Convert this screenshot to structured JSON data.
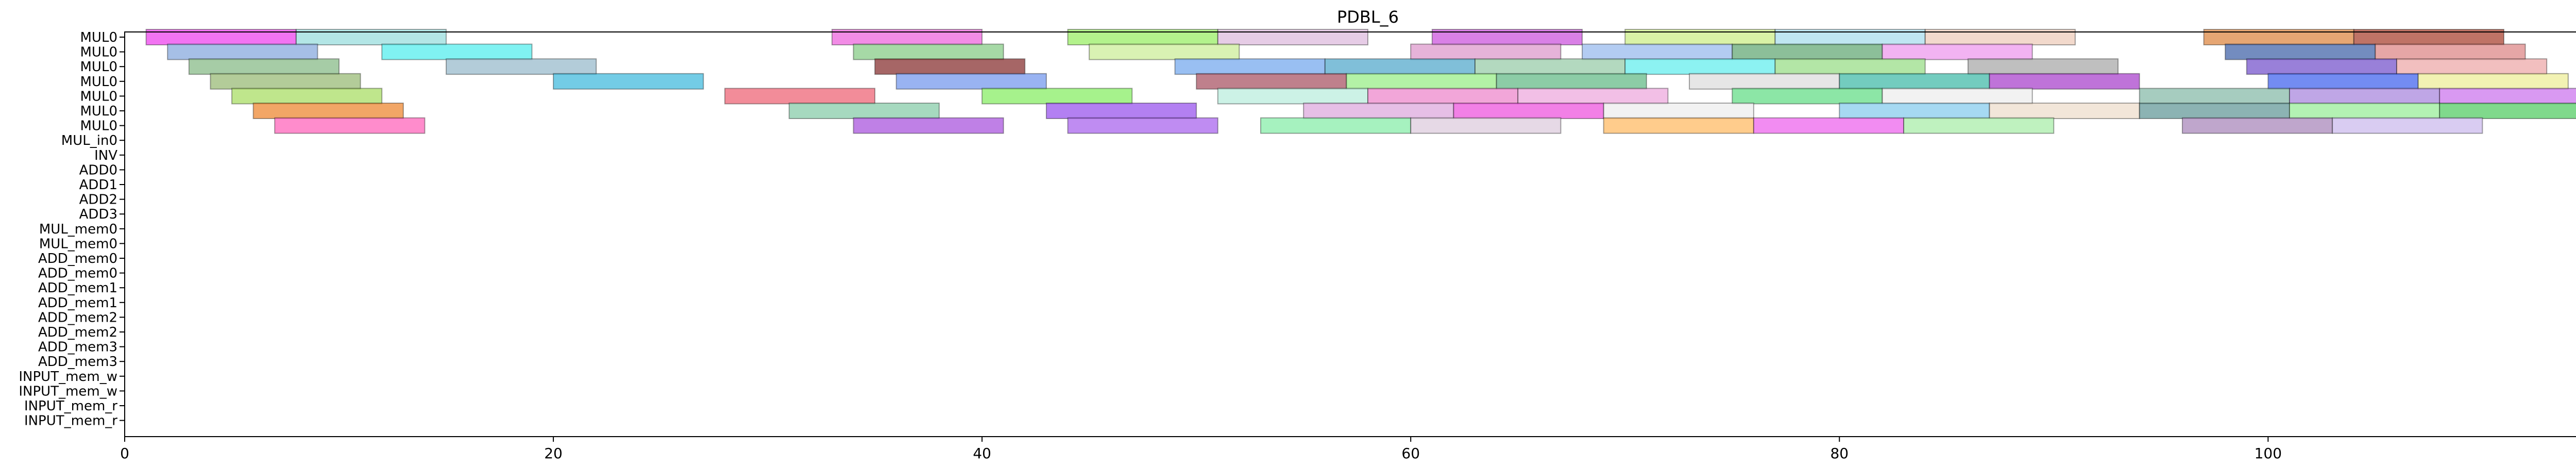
{
  "chart_data": {
    "type": "gantt",
    "title": "PDBL_6",
    "xlabel": "",
    "ylabel": "",
    "xlim": [
      0,
      116
    ],
    "x_ticks": [
      0,
      20,
      40,
      60,
      80,
      100
    ],
    "grid": false,
    "legend": "none",
    "rows": [
      {
        "label": "MUL0",
        "bars": [
          [
            1,
            8,
            "#ee44ee"
          ],
          [
            8,
            15,
            "#99dddd"
          ],
          [
            33,
            40,
            "#ee66dd"
          ],
          [
            44,
            51,
            "#99ee66"
          ],
          [
            51,
            58,
            "#ddbbdd"
          ],
          [
            61,
            68,
            "#cc55dd"
          ],
          [
            70,
            77,
            "#ccee88"
          ],
          [
            77,
            84,
            "#aaddee"
          ],
          [
            84,
            91,
            "#eeccbb"
          ],
          [
            97,
            104,
            "#dd8844"
          ],
          [
            104,
            111,
            "#aa4433"
          ]
        ]
      },
      {
        "label": "MUL0",
        "bars": [
          [
            2,
            9,
            "#88aadd"
          ],
          [
            12,
            19,
            "#55eeee"
          ],
          [
            34,
            41,
            "#88cc88"
          ],
          [
            45,
            52,
            "#ccee99"
          ],
          [
            60,
            67,
            "#dd99cc"
          ],
          [
            68,
            75,
            "#99bbee"
          ],
          [
            75,
            82,
            "#66aa77"
          ],
          [
            82,
            89,
            "#ee99ee"
          ],
          [
            98,
            105,
            "#4466aa"
          ],
          [
            105,
            112,
            "#dd8888"
          ]
        ]
      },
      {
        "label": "MUL0",
        "bars": [
          [
            3,
            10,
            "#88bb88"
          ],
          [
            15,
            22,
            "#99bbcc"
          ],
          [
            35,
            42,
            "#883333"
          ],
          [
            49,
            56,
            "#77aaee"
          ],
          [
            56,
            63,
            "#55aacc"
          ],
          [
            63,
            70,
            "#99ccaa"
          ],
          [
            70,
            77,
            "#66eeee"
          ],
          [
            77,
            84,
            "#99dd88"
          ],
          [
            86,
            93,
            "#aaaaaa"
          ],
          [
            99,
            106,
            "#7755cc"
          ],
          [
            106,
            113,
            "#eeaaaa"
          ]
        ]
      },
      {
        "label": "MUL0",
        "bars": [
          [
            4,
            11,
            "#99bb77"
          ],
          [
            20,
            27,
            "#44bbdd"
          ],
          [
            36,
            43,
            "#7799ee"
          ],
          [
            50,
            57,
            "#aa5566"
          ],
          [
            57,
            64,
            "#99ee88"
          ],
          [
            64,
            71,
            "#66bb88"
          ],
          [
            73,
            80,
            "#dddddd"
          ],
          [
            80,
            87,
            "#44bbaa"
          ],
          [
            87,
            94,
            "#aa44cc"
          ],
          [
            100,
            107,
            "#4466ee"
          ],
          [
            107,
            114,
            "#eeee99"
          ]
        ]
      },
      {
        "label": "MUL0",
        "bars": [
          [
            5,
            12,
            "#aadd66"
          ],
          [
            28,
            35,
            "#ee6677"
          ],
          [
            40,
            47,
            "#88ee66"
          ],
          [
            51,
            58,
            "#bbeedd"
          ],
          [
            58,
            65,
            "#ee88cc"
          ],
          [
            65,
            72,
            "#eeaadd"
          ],
          [
            75,
            82,
            "#66dd88"
          ],
          [
            82,
            89,
            "#eeeeee"
          ],
          [
            94,
            101,
            "#88bbaa"
          ],
          [
            101,
            108,
            "#aa88dd"
          ],
          [
            108,
            115,
            "#cc77ee"
          ]
        ]
      },
      {
        "label": "MUL0",
        "bars": [
          [
            6,
            13,
            "#ee8833"
          ],
          [
            31,
            38,
            "#88ccaa"
          ],
          [
            43,
            50,
            "#9955ee"
          ],
          [
            55,
            62,
            "#ddaadd"
          ],
          [
            62,
            69,
            "#ee55dd"
          ],
          [
            69,
            76,
            "#eeeeee"
          ],
          [
            80,
            87,
            "#88ccee"
          ],
          [
            87,
            94,
            "#eeddcc"
          ],
          [
            94,
            101,
            "#669999"
          ],
          [
            101,
            108,
            "#99ee99"
          ],
          [
            108,
            115,
            "#55cc66"
          ]
        ]
      },
      {
        "label": "MUL0",
        "bars": [
          [
            7,
            14,
            "#ff66bb"
          ],
          [
            34,
            41,
            "#aa55dd"
          ],
          [
            44,
            51,
            "#aa66ee"
          ],
          [
            53,
            60,
            "#88eeaa"
          ],
          [
            60,
            67,
            "#ddccdd"
          ],
          [
            69,
            76,
            "#ffbb66"
          ],
          [
            76,
            83,
            "#ee66ee"
          ],
          [
            83,
            90,
            "#aaeeaa"
          ],
          [
            96,
            103,
            "#aa88bb"
          ],
          [
            103,
            110,
            "#ccbbee"
          ]
        ]
      },
      {
        "label": "MUL_in0",
        "bars": []
      },
      {
        "label": "INV",
        "bars": []
      },
      {
        "label": "ADD0",
        "bars": []
      },
      {
        "label": "ADD1",
        "bars": []
      },
      {
        "label": "ADD2",
        "bars": []
      },
      {
        "label": "ADD3",
        "bars": []
      },
      {
        "label": "MUL_mem0",
        "bars": []
      },
      {
        "label": "MUL_mem0",
        "bars": []
      },
      {
        "label": "ADD_mem0",
        "bars": []
      },
      {
        "label": "ADD_mem0",
        "bars": []
      },
      {
        "label": "ADD_mem1",
        "bars": []
      },
      {
        "label": "ADD_mem1",
        "bars": []
      },
      {
        "label": "ADD_mem2",
        "bars": []
      },
      {
        "label": "ADD_mem2",
        "bars": []
      },
      {
        "label": "ADD_mem3",
        "bars": []
      },
      {
        "label": "ADD_mem3",
        "bars": []
      },
      {
        "label": "INPUT_mem_w",
        "bars": []
      },
      {
        "label": "INPUT_mem_w",
        "bars": []
      },
      {
        "label": "INPUT_mem_r",
        "bars": []
      },
      {
        "label": "INPUT_mem_r",
        "bars": []
      }
    ]
  }
}
